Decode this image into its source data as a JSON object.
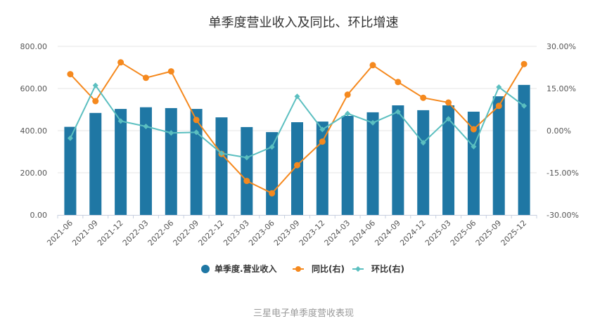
{
  "chart_data": {
    "type": "bar",
    "title": "单季度营业收入及同比、环比增速",
    "caption": "三星电子单季度营收表现",
    "categories": [
      "2021-06",
      "2021-09",
      "2021-12",
      "2022-03",
      "2022-06",
      "2022-09",
      "2022-12",
      "2023-03",
      "2023-06",
      "2023-09",
      "2023-12",
      "2024-03",
      "2024-06",
      "2024-09",
      "2024-12",
      "2025-03",
      "2025-06",
      "2025-09",
      "2025-12"
    ],
    "left_axis": {
      "ylim": [
        0,
        800
      ],
      "ticks": [
        "0.00",
        "200.00",
        "400.00",
        "600.00",
        "800.00"
      ],
      "tick_values": [
        0,
        200,
        400,
        600,
        800
      ]
    },
    "right_axis": {
      "ylim": [
        -30,
        30
      ],
      "ticks": [
        "-30.00%",
        "-15.00%",
        "0.00%",
        "15.00%",
        "30.00%"
      ],
      "tick_values": [
        -30,
        -15,
        0,
        15,
        30
      ]
    },
    "grid": true,
    "legend_position": "bottom",
    "series": [
      {
        "name": "单季度.营业收入",
        "type": "bar",
        "axis": "left",
        "color": "#1f77a4",
        "values": [
          418,
          484,
          503,
          511,
          507,
          503,
          463,
          417,
          393,
          440,
          443,
          470,
          487,
          520,
          497,
          520,
          490,
          563,
          617
        ]
      },
      {
        "name": "同比(右)",
        "type": "line",
        "axis": "right",
        "color": "#f5891e",
        "marker": "circle",
        "values": [
          20.1,
          10.5,
          24.3,
          18.8,
          21.1,
          3.8,
          -8.3,
          -17.9,
          -22.3,
          -12.3,
          -3.9,
          12.8,
          23.3,
          17.3,
          11.7,
          10.0,
          0.5,
          8.8,
          23.7
        ]
      },
      {
        "name": "环比(右)",
        "type": "line",
        "axis": "right",
        "color": "#5bbfc0",
        "marker": "diamond",
        "values": [
          -2.7,
          16.1,
          3.4,
          1.5,
          -0.8,
          -0.6,
          -8.1,
          -9.6,
          -5.8,
          12.2,
          0.4,
          6.1,
          2.8,
          6.7,
          -4.3,
          4.2,
          -5.7,
          15.5,
          8.8
        ]
      }
    ]
  }
}
